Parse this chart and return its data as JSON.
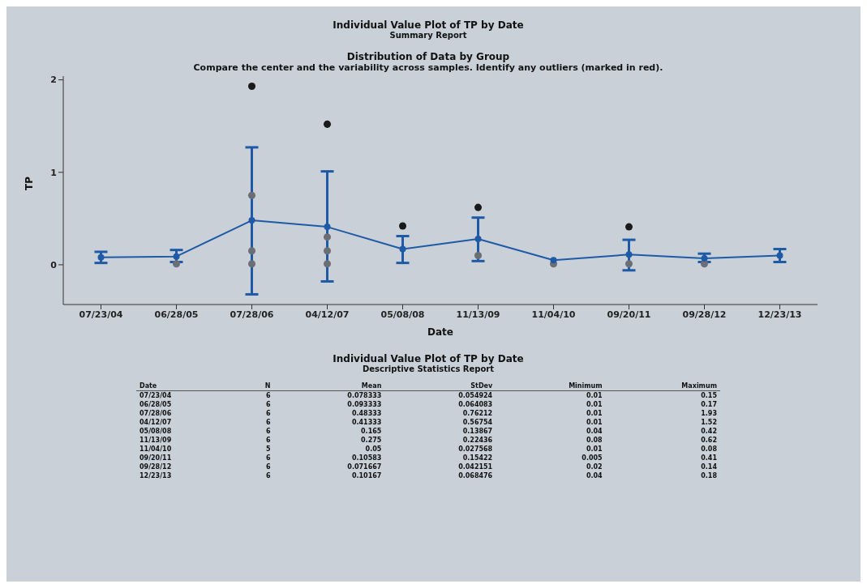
{
  "chart_data": [
    {
      "type": "line",
      "title": "Individual Value Plot of TP by Date",
      "subtitle": "Summary Report",
      "annotations": [
        "Distribution of Data by Group",
        "Compare the center and the variability across samples. Identify any outliers (marked in red)."
      ],
      "xlabel": "Date",
      "ylabel": "TP",
      "categories": [
        "07/23/04",
        "06/28/05",
        "07/28/06",
        "04/12/07",
        "05/08/08",
        "11/13/09",
        "11/04/10",
        "09/20/11",
        "09/28/12",
        "12/23/13"
      ],
      "ylim": [
        -0.43,
        2.04
      ],
      "yticks": [
        0,
        1,
        2
      ],
      "marker": "circle",
      "line_style": "solid",
      "series": [
        {
          "type": "scatter",
          "color": "#6b6f75",
          "x": [
            "06/28/05",
            "07/28/06",
            "07/28/06",
            "07/28/06",
            "04/12/07",
            "04/12/07",
            "04/12/07",
            "11/13/09",
            "11/04/10",
            "09/20/11",
            "09/28/12"
          ],
          "values": [
            0.01,
            0.75,
            0.15,
            0.01,
            0.3,
            0.15,
            0.01,
            0.1,
            0.01,
            0.01,
            0.01
          ]
        },
        {
          "type": "scatter",
          "color": "#1a1a1a",
          "x": [
            "07/28/06",
            "04/12/07",
            "05/08/08",
            "11/13/09",
            "09/20/11"
          ],
          "values": [
            1.93,
            1.52,
            0.42,
            0.62,
            0.41
          ]
        },
        {
          "type": "line",
          "color": "#1f5aa6",
          "values": [
            0.08,
            0.09,
            0.48,
            0.41,
            0.17,
            0.28,
            0.05,
            0.11,
            0.07,
            0.1
          ],
          "errors": [
            [
              0.02,
              0.14
            ],
            [
              0.03,
              0.16
            ],
            [
              -0.32,
              1.27
            ],
            [
              -0.18,
              1.01
            ],
            [
              0.02,
              0.31
            ],
            [
              0.04,
              0.51
            ],
            null,
            [
              -0.06,
              0.27
            ],
            [
              0.03,
              0.12
            ],
            [
              0.03,
              0.17
            ]
          ]
        }
      ]
    },
    {
      "type": "other",
      "title": "Individual Value Plot of TP by Date",
      "subtitle": "Descriptive Statistics Report",
      "xlabel": "Date",
      "data_labels": true,
      "categories": [
        "07/23/04",
        "06/28/05",
        "07/28/06",
        "04/12/07",
        "05/08/08",
        "11/13/09",
        "11/04/10",
        "09/20/11",
        "09/28/12",
        "12/23/13"
      ],
      "series": [
        {
          "name": "N",
          "values": [
            6,
            6,
            6,
            6,
            6,
            6,
            5,
            6,
            6,
            6
          ]
        },
        {
          "name": "Mean",
          "values": [
            0.078333,
            0.093333,
            0.48333,
            0.41333,
            0.165,
            0.275,
            0.05,
            0.10583,
            0.071667,
            0.10167
          ]
        },
        {
          "name": "StDev",
          "values": [
            0.054924,
            0.064083,
            0.76212,
            0.56754,
            0.13867,
            0.22436,
            0.027568,
            0.15422,
            0.042151,
            0.068476
          ]
        },
        {
          "name": "Minimum",
          "values": [
            0.01,
            0.01,
            0.01,
            0.01,
            0.04,
            0.08,
            0.01,
            0.005,
            0.02,
            0.04
          ]
        },
        {
          "name": "Maximum",
          "values": [
            0.15,
            0.17,
            1.93,
            1.52,
            0.42,
            0.62,
            0.08,
            0.41,
            0.14,
            0.18
          ]
        }
      ]
    }
  ]
}
